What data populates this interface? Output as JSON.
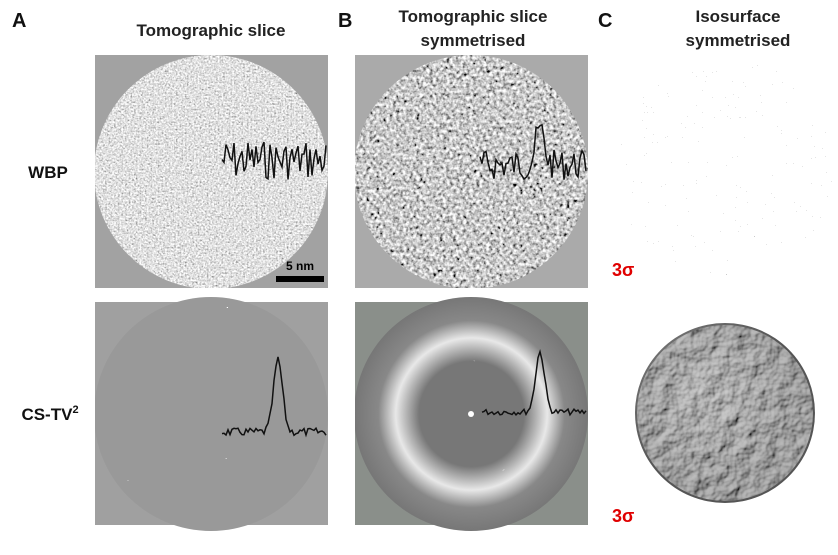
{
  "panels": [
    {
      "letter": "A",
      "title": [
        "Tomographic slice"
      ]
    },
    {
      "letter": "B",
      "title": [
        "Tomographic slice",
        "symmetrised"
      ]
    },
    {
      "letter": "C",
      "title": [
        "Isosurface",
        "symmetrised"
      ]
    }
  ],
  "rows": [
    {
      "label": "WBP"
    },
    {
      "label": "CS-TV",
      "superscript": "2"
    }
  ],
  "scale_bar": "5 nm",
  "threshold_labels": [
    "3σ",
    "3σ"
  ]
}
